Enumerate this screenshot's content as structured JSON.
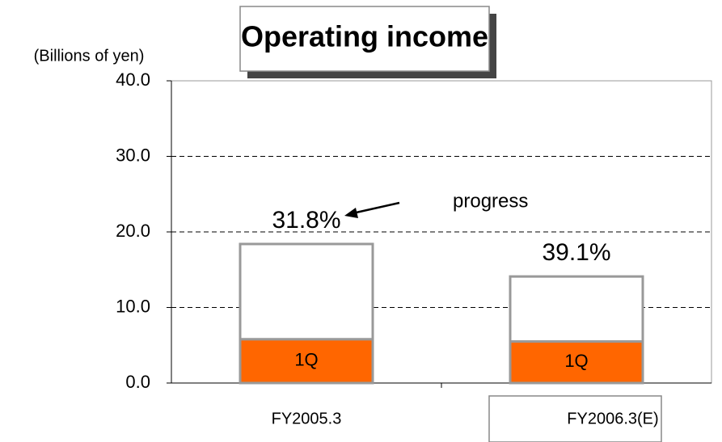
{
  "chart_data": {
    "type": "stacked_bar",
    "title": "Operating income",
    "y_label": "(Billions of yen)",
    "categories": [
      "FY2005.3",
      "FY2006.3(E)"
    ],
    "series": [
      {
        "name": "1Q",
        "color": "#ff6600",
        "values": [
          5.8,
          5.5
        ]
      },
      {
        "color": "#ffffff",
        "values": [
          12.6,
          8.6
        ]
      }
    ],
    "progress_labels": [
      "31.8%",
      "39.1%"
    ],
    "annotation": "progress",
    "ylim": [
      0,
      40
    ],
    "yticks": [
      {
        "value": 0,
        "label": "0.0"
      },
      {
        "value": 10,
        "label": "10.0"
      },
      {
        "value": 20,
        "label": "20.0"
      },
      {
        "value": 30,
        "label": "30.0"
      },
      {
        "value": 40,
        "label": "40.0"
      }
    ],
    "grid": true
  }
}
